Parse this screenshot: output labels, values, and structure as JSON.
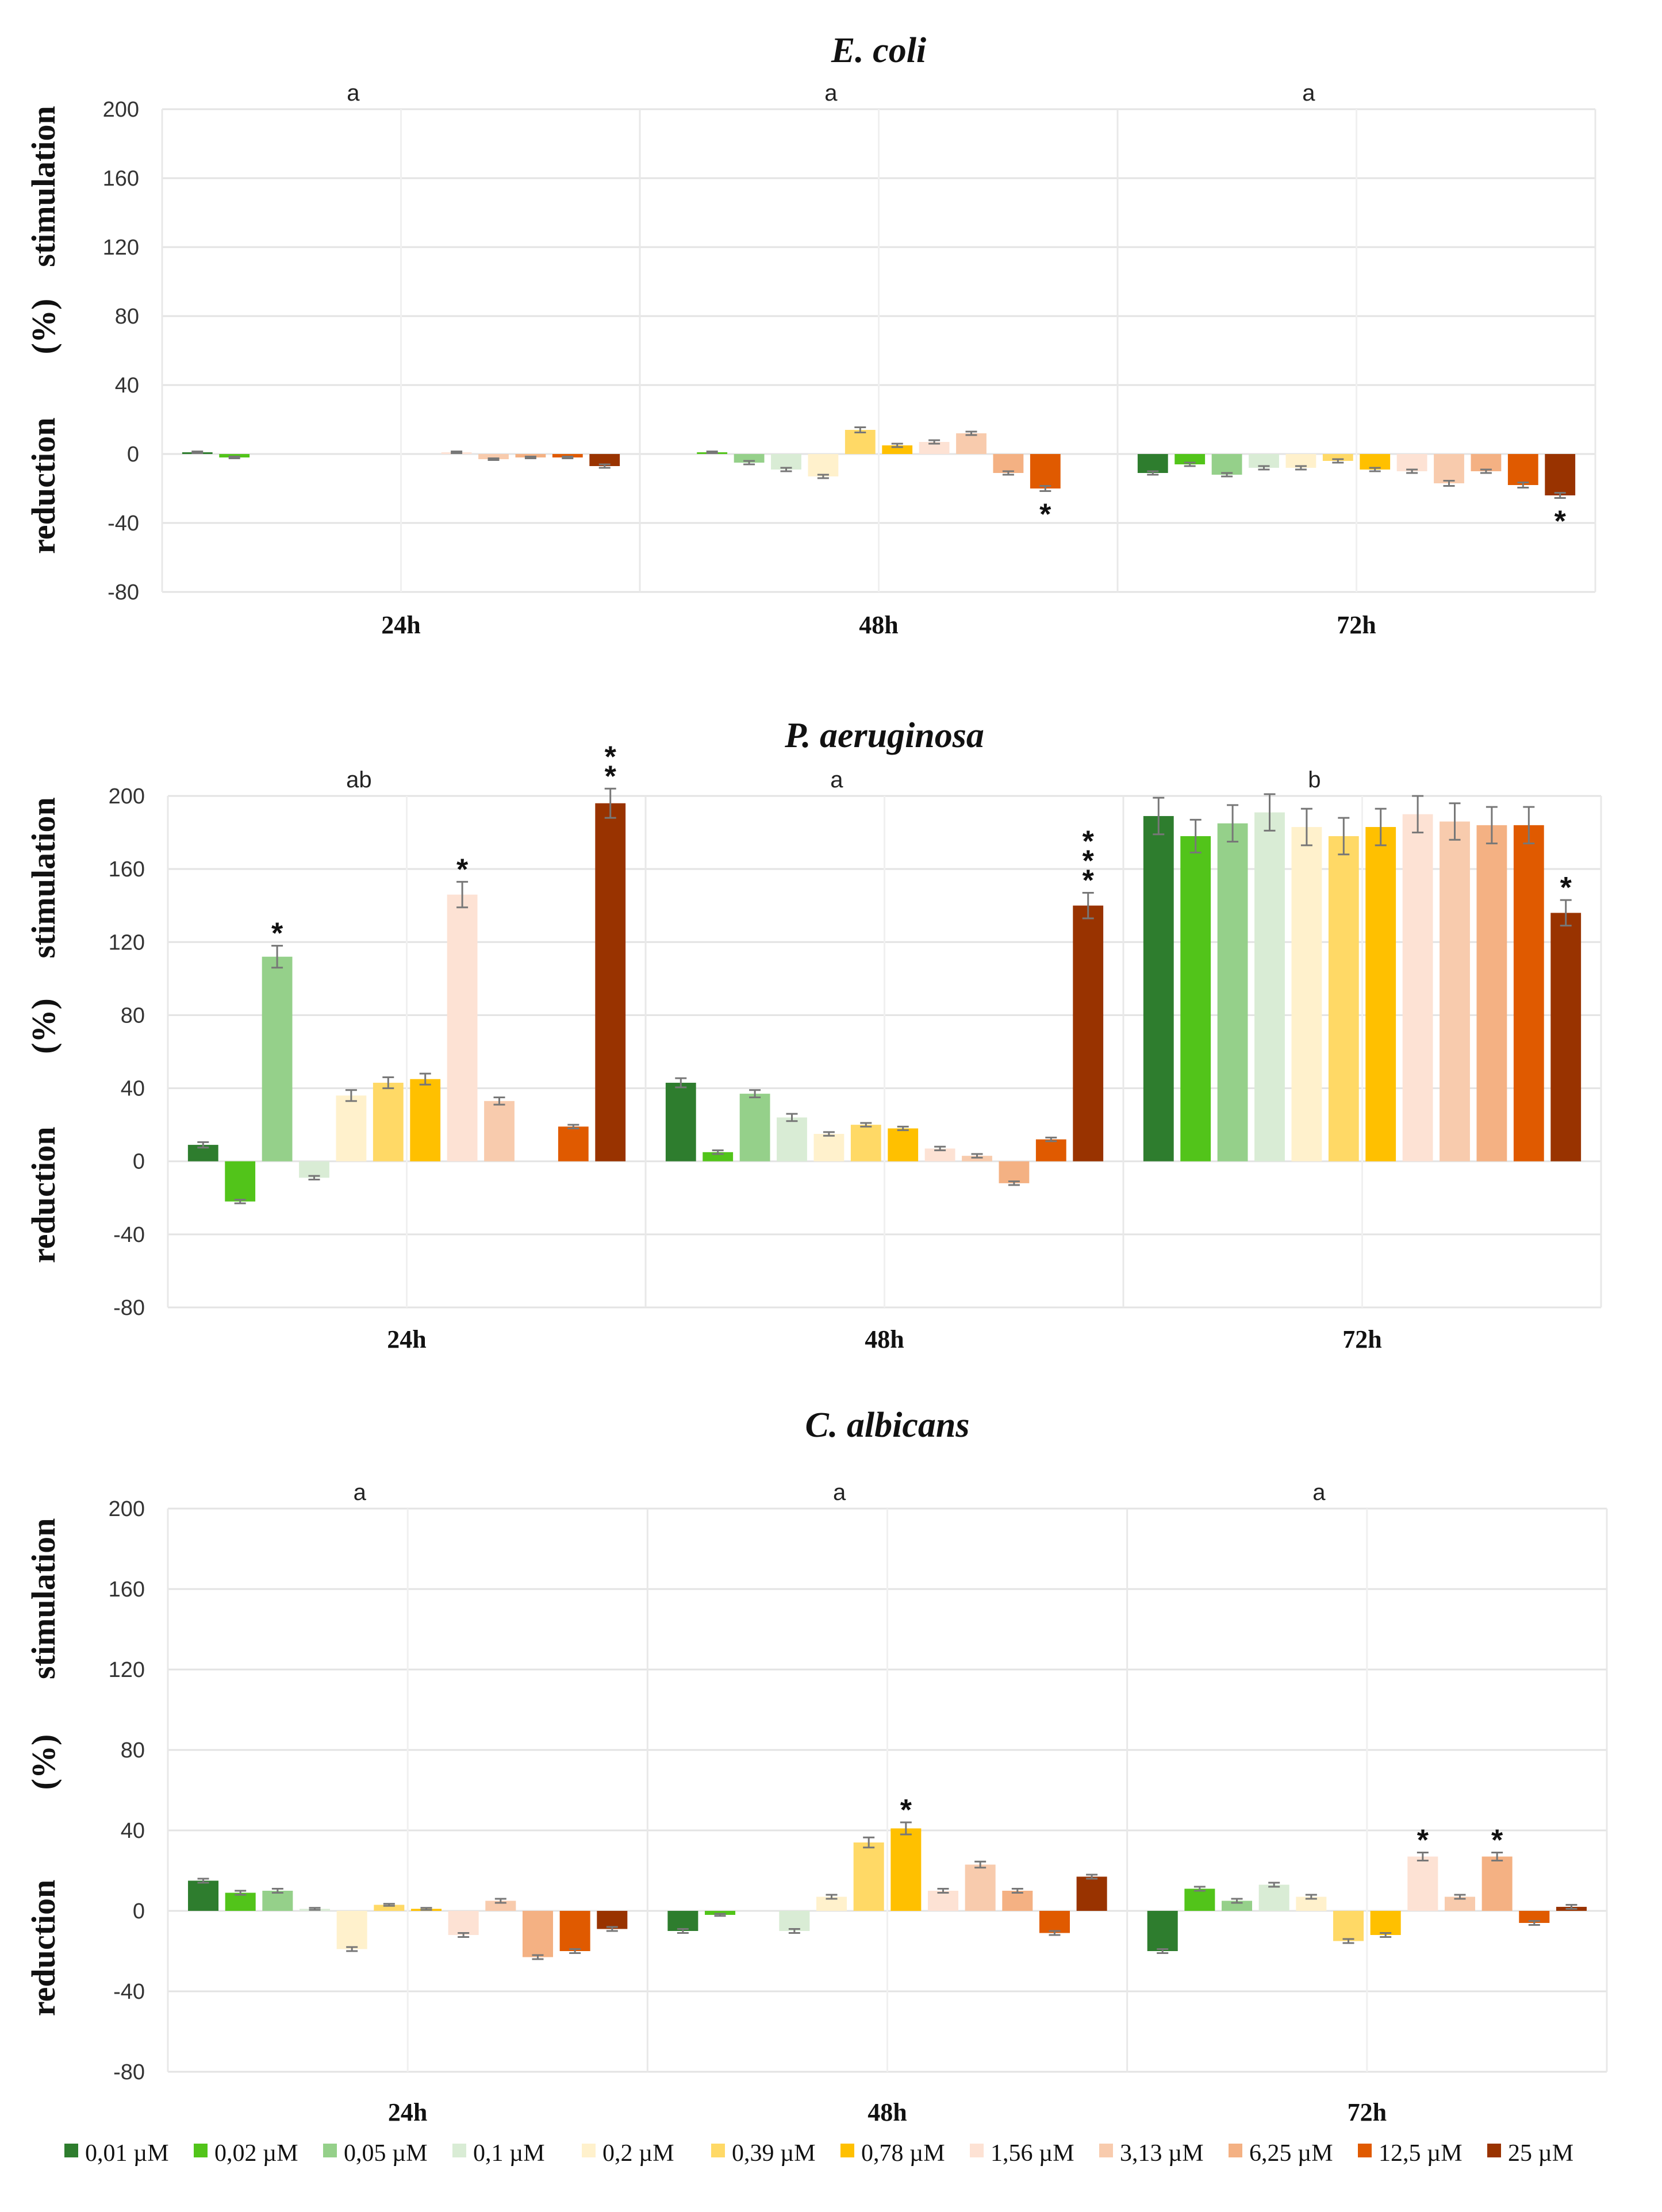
{
  "legend": {
    "items": [
      {
        "label": "0,01 µM",
        "color": "#2e7d2e"
      },
      {
        "label": "0,02 µM",
        "color": "#52c41a"
      },
      {
        "label": "0,05 µM",
        "color": "#95d08a"
      },
      {
        "label": "0,1  µM",
        "color": "#d9ecd5"
      },
      {
        "label": "0,2  µM",
        "color": "#fff1cc"
      },
      {
        "label": "0,39 µM",
        "color": "#ffd966"
      },
      {
        "label": "0,78 µM",
        "color": "#ffc000"
      },
      {
        "label": "1,56 µM",
        "color": "#fde2d4"
      },
      {
        "label": "3,13  µM",
        "color": "#f8cbad"
      },
      {
        "label": "6,25 µM",
        "color": "#f4b183"
      },
      {
        "label": "12,5 µM",
        "color": "#e05a00"
      },
      {
        "label": "25 µM",
        "color": "#993300"
      }
    ]
  },
  "chart_data": [
    {
      "type": "bar",
      "title": "E. coli",
      "ylabel_top": "stimulation",
      "ylabel_mid": "(%)",
      "ylabel_bottom": "reduction",
      "ylim": [
        -80,
        200
      ],
      "yticks": [
        200,
        160,
        120,
        80,
        40,
        0,
        -40,
        -80
      ],
      "categories": [
        "24h",
        "48h",
        "72h"
      ],
      "group_letters": [
        "a",
        "a",
        "a"
      ],
      "values": [
        [
          1,
          -2,
          0,
          0,
          0,
          0,
          0,
          1,
          -3,
          -2,
          -2,
          -7
        ],
        [
          0,
          1,
          -5,
          -9,
          -13,
          14,
          5,
          7,
          12,
          -11,
          -20,
          null
        ],
        [
          -11,
          -6,
          -12,
          -8,
          -8,
          -4,
          -9,
          -10,
          -17,
          -10,
          -18,
          -24
        ]
      ],
      "errors": [
        [
          0.5,
          0.5,
          0,
          0,
          0,
          0,
          0,
          0.5,
          0.5,
          0.5,
          0.5,
          1
        ],
        [
          0,
          0.5,
          1,
          1,
          1,
          1.5,
          1,
          1,
          1,
          1,
          1.5,
          0
        ],
        [
          1,
          1,
          1,
          1,
          1,
          1,
          1,
          1,
          1.5,
          1,
          1.5,
          1.5
        ]
      ],
      "significance": [
        {
          "group": 1,
          "bar": 10,
          "text": "*"
        },
        {
          "group": 2,
          "bar": 11,
          "text": "*"
        }
      ]
    },
    {
      "type": "bar",
      "title": "P. aeruginosa",
      "ylabel_top": "stimulation",
      "ylabel_mid": "(%)",
      "ylabel_bottom": "reduction",
      "ylim": [
        -80,
        200
      ],
      "yticks": [
        200,
        160,
        120,
        80,
        40,
        0,
        -40,
        -80
      ],
      "categories": [
        "24h",
        "48h",
        "72h"
      ],
      "group_letters": [
        "ab",
        "a",
        "b"
      ],
      "values": [
        [
          9,
          -22,
          112,
          -9,
          36,
          43,
          45,
          146,
          33,
          0,
          19,
          196
        ],
        [
          43,
          5,
          37,
          24,
          15,
          20,
          18,
          7,
          3,
          -12,
          12,
          140
        ],
        [
          189,
          178,
          185,
          191,
          183,
          178,
          183,
          190,
          186,
          184,
          184,
          136
        ]
      ],
      "errors": [
        [
          1.5,
          1,
          6,
          1,
          3,
          3,
          3,
          7,
          2,
          0,
          1,
          8
        ],
        [
          2.5,
          1,
          2,
          2,
          1,
          1,
          1,
          1,
          1,
          1,
          1,
          7
        ],
        [
          10,
          9,
          10,
          10,
          10,
          10,
          10,
          10,
          10,
          10,
          10,
          7
        ]
      ],
      "significance": [
        {
          "group": 0,
          "bar": 2,
          "text": "*"
        },
        {
          "group": 0,
          "bar": 7,
          "text": "*"
        },
        {
          "group": 0,
          "bar": 11,
          "text": "**"
        },
        {
          "group": 1,
          "bar": 11,
          "text": "***"
        },
        {
          "group": 2,
          "bar": 11,
          "text": "*"
        }
      ]
    },
    {
      "type": "bar",
      "title": "C. albicans",
      "ylabel_top": "stimulation",
      "ylabel_mid": "(%)",
      "ylabel_bottom": "reduction",
      "ylim": [
        -80,
        200
      ],
      "yticks": [
        200,
        160,
        120,
        80,
        40,
        0,
        -40,
        -80
      ],
      "categories": [
        "24h",
        "48h",
        "72h"
      ],
      "group_letters": [
        "a",
        "a",
        "a"
      ],
      "values": [
        [
          15,
          9,
          10,
          1,
          -19,
          3,
          1,
          -12,
          5,
          -23,
          -20,
          -9
        ],
        [
          -10,
          -2,
          0,
          -10,
          7,
          34,
          41,
          10,
          23,
          10,
          -11,
          17
        ],
        [
          -20,
          11,
          5,
          13,
          7,
          -15,
          -12,
          27,
          7,
          27,
          -6,
          2
        ]
      ],
      "errors": [
        [
          1,
          1,
          1,
          0.5,
          1,
          0.5,
          0.5,
          1,
          1,
          1,
          1,
          1
        ],
        [
          1,
          0.5,
          0,
          1,
          1,
          2.5,
          3,
          1,
          1.5,
          1,
          1,
          1
        ],
        [
          1,
          1,
          1,
          1,
          1,
          1,
          1,
          2,
          1,
          2,
          1,
          1
        ]
      ],
      "significance": [
        {
          "group": 1,
          "bar": 6,
          "text": "*"
        },
        {
          "group": 2,
          "bar": 7,
          "text": "*"
        },
        {
          "group": 2,
          "bar": 9,
          "text": "*"
        }
      ]
    }
  ]
}
